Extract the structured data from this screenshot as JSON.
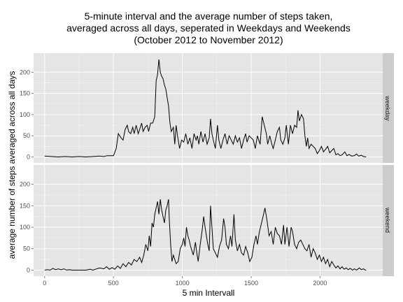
{
  "chart_data": {
    "type": "line",
    "title": [
      "5-minute interval and the average number of steps taken,",
      "averaged across all days, seperated in Weekdays and Weekends",
      "(October 2012 to November 2012)"
    ],
    "xlabel": "5 min Intervall",
    "ylabel": "average number of steps averaged across all days",
    "xlim": [
      -80,
      2455
    ],
    "ylim": [
      -14,
      245
    ],
    "x_ticks": [
      0,
      500,
      1000,
      1500,
      2000
    ],
    "y_ticks": [
      0,
      50,
      100,
      150,
      200
    ],
    "grid": true,
    "line_color": "#000000",
    "panel_background": "#e5e5e5",
    "strip_background": "#cccccc",
    "series": [
      {
        "panel": "weekday",
        "points": [
          [
            0,
            2
          ],
          [
            50,
            1
          ],
          [
            100,
            0
          ],
          [
            150,
            1
          ],
          [
            200,
            0
          ],
          [
            250,
            1
          ],
          [
            300,
            0
          ],
          [
            350,
            1
          ],
          [
            400,
            2
          ],
          [
            430,
            1
          ],
          [
            455,
            3
          ],
          [
            500,
            3
          ],
          [
            520,
            20
          ],
          [
            535,
            55
          ],
          [
            555,
            45
          ],
          [
            570,
            40
          ],
          [
            585,
            65
          ],
          [
            600,
            75
          ],
          [
            610,
            60
          ],
          [
            625,
            55
          ],
          [
            640,
            70
          ],
          [
            650,
            55
          ],
          [
            665,
            75
          ],
          [
            680,
            55
          ],
          [
            690,
            65
          ],
          [
            705,
            80
          ],
          [
            715,
            60
          ],
          [
            730,
            70
          ],
          [
            745,
            75
          ],
          [
            755,
            60
          ],
          [
            770,
            80
          ],
          [
            785,
            80
          ],
          [
            800,
            95
          ],
          [
            810,
            180
          ],
          [
            820,
            195
          ],
          [
            830,
            230
          ],
          [
            840,
            200
          ],
          [
            850,
            190
          ],
          [
            860,
            185
          ],
          [
            870,
            170
          ],
          [
            880,
            160
          ],
          [
            890,
            140
          ],
          [
            900,
            120
          ],
          [
            910,
            80
          ],
          [
            920,
            60
          ],
          [
            935,
            70
          ],
          [
            945,
            30
          ],
          [
            955,
            75
          ],
          [
            965,
            50
          ],
          [
            980,
            20
          ],
          [
            995,
            40
          ],
          [
            1010,
            35
          ],
          [
            1025,
            55
          ],
          [
            1040,
            30
          ],
          [
            1055,
            45
          ],
          [
            1070,
            20
          ],
          [
            1085,
            55
          ],
          [
            1100,
            40
          ],
          [
            1110,
            50
          ],
          [
            1120,
            30
          ],
          [
            1135,
            60
          ],
          [
            1150,
            35
          ],
          [
            1165,
            55
          ],
          [
            1180,
            30
          ],
          [
            1195,
            45
          ],
          [
            1205,
            90
          ],
          [
            1215,
            55
          ],
          [
            1225,
            40
          ],
          [
            1240,
            20
          ],
          [
            1255,
            75
          ],
          [
            1265,
            40
          ],
          [
            1280,
            20
          ],
          [
            1295,
            40
          ],
          [
            1310,
            55
          ],
          [
            1325,
            30
          ],
          [
            1340,
            50
          ],
          [
            1355,
            40
          ],
          [
            1370,
            30
          ],
          [
            1385,
            50
          ],
          [
            1400,
            35
          ],
          [
            1415,
            45
          ],
          [
            1430,
            20
          ],
          [
            1445,
            40
          ],
          [
            1460,
            55
          ],
          [
            1470,
            35
          ],
          [
            1485,
            50
          ],
          [
            1500,
            45
          ],
          [
            1515,
            40
          ],
          [
            1530,
            20
          ],
          [
            1545,
            50
          ],
          [
            1555,
            40
          ],
          [
            1565,
            30
          ],
          [
            1580,
            95
          ],
          [
            1595,
            75
          ],
          [
            1610,
            55
          ],
          [
            1620,
            30
          ],
          [
            1635,
            50
          ],
          [
            1650,
            30
          ],
          [
            1660,
            20
          ],
          [
            1675,
            40
          ],
          [
            1690,
            60
          ],
          [
            1705,
            70
          ],
          [
            1715,
            40
          ],
          [
            1730,
            30
          ],
          [
            1745,
            45
          ],
          [
            1755,
            75
          ],
          [
            1770,
            30
          ],
          [
            1785,
            75
          ],
          [
            1800,
            55
          ],
          [
            1815,
            75
          ],
          [
            1830,
            70
          ],
          [
            1840,
            110
          ],
          [
            1850,
            85
          ],
          [
            1865,
            100
          ],
          [
            1880,
            90
          ],
          [
            1890,
            50
          ],
          [
            1900,
            25
          ],
          [
            1910,
            45
          ],
          [
            1920,
            20
          ],
          [
            1935,
            30
          ],
          [
            1950,
            25
          ],
          [
            1965,
            20
          ],
          [
            1980,
            8
          ],
          [
            1995,
            15
          ],
          [
            2010,
            25
          ],
          [
            2025,
            12
          ],
          [
            2040,
            18
          ],
          [
            2055,
            25
          ],
          [
            2070,
            10
          ],
          [
            2085,
            15
          ],
          [
            2100,
            20
          ],
          [
            2115,
            5
          ],
          [
            2130,
            8
          ],
          [
            2145,
            3
          ],
          [
            2160,
            5
          ],
          [
            2180,
            12
          ],
          [
            2195,
            3
          ],
          [
            2210,
            6
          ],
          [
            2230,
            2
          ],
          [
            2250,
            3
          ],
          [
            2265,
            7
          ],
          [
            2280,
            2
          ],
          [
            2300,
            4
          ],
          [
            2315,
            1
          ],
          [
            2335,
            0
          ]
        ]
      },
      {
        "panel": "weekend",
        "points": [
          [
            0,
            0
          ],
          [
            20,
            1
          ],
          [
            40,
            0
          ],
          [
            60,
            4
          ],
          [
            80,
            1
          ],
          [
            100,
            3
          ],
          [
            120,
            1
          ],
          [
            140,
            3
          ],
          [
            160,
            0
          ],
          [
            180,
            1
          ],
          [
            200,
            0
          ],
          [
            250,
            0
          ],
          [
            300,
            0
          ],
          [
            330,
            2
          ],
          [
            350,
            0
          ],
          [
            400,
            5
          ],
          [
            430,
            3
          ],
          [
            450,
            8
          ],
          [
            470,
            2
          ],
          [
            490,
            6
          ],
          [
            510,
            2
          ],
          [
            530,
            10
          ],
          [
            550,
            4
          ],
          [
            570,
            15
          ],
          [
            590,
            8
          ],
          [
            610,
            18
          ],
          [
            630,
            12
          ],
          [
            650,
            25
          ],
          [
            670,
            20
          ],
          [
            690,
            30
          ],
          [
            705,
            18
          ],
          [
            720,
            35
          ],
          [
            735,
            60
          ],
          [
            750,
            45
          ],
          [
            760,
            80
          ],
          [
            770,
            55
          ],
          [
            780,
            110
          ],
          [
            790,
            100
          ],
          [
            800,
            130
          ],
          [
            810,
            145
          ],
          [
            820,
            160
          ],
          [
            830,
            130
          ],
          [
            840,
            165
          ],
          [
            850,
            140
          ],
          [
            860,
            125
          ],
          [
            870,
            110
          ],
          [
            880,
            140
          ],
          [
            890,
            150
          ],
          [
            900,
            165
          ],
          [
            905,
            120
          ],
          [
            915,
            60
          ],
          [
            925,
            20
          ],
          [
            935,
            35
          ],
          [
            945,
            25
          ],
          [
            955,
            15
          ],
          [
            970,
            20
          ],
          [
            985,
            50
          ],
          [
            1000,
            60
          ],
          [
            1010,
            75
          ],
          [
            1020,
            55
          ],
          [
            1030,
            100
          ],
          [
            1040,
            80
          ],
          [
            1050,
            70
          ],
          [
            1060,
            55
          ],
          [
            1070,
            45
          ],
          [
            1080,
            35
          ],
          [
            1095,
            65
          ],
          [
            1105,
            40
          ],
          [
            1115,
            20
          ],
          [
            1130,
            60
          ],
          [
            1145,
            95
          ],
          [
            1155,
            125
          ],
          [
            1165,
            100
          ],
          [
            1175,
            80
          ],
          [
            1185,
            60
          ],
          [
            1195,
            45
          ],
          [
            1205,
            150
          ],
          [
            1215,
            100
          ],
          [
            1225,
            50
          ],
          [
            1240,
            40
          ],
          [
            1255,
            30
          ],
          [
            1270,
            55
          ],
          [
            1285,
            70
          ],
          [
            1300,
            120
          ],
          [
            1310,
            100
          ],
          [
            1320,
            60
          ],
          [
            1335,
            50
          ],
          [
            1350,
            80
          ],
          [
            1360,
            55
          ],
          [
            1375,
            130
          ],
          [
            1385,
            70
          ],
          [
            1400,
            45
          ],
          [
            1415,
            60
          ],
          [
            1430,
            40
          ],
          [
            1445,
            35
          ],
          [
            1460,
            55
          ],
          [
            1475,
            40
          ],
          [
            1490,
            20
          ],
          [
            1505,
            30
          ],
          [
            1520,
            60
          ],
          [
            1535,
            80
          ],
          [
            1545,
            60
          ],
          [
            1560,
            90
          ],
          [
            1575,
            110
          ],
          [
            1590,
            130
          ],
          [
            1600,
            145
          ],
          [
            1615,
            115
          ],
          [
            1630,
            80
          ],
          [
            1645,
            90
          ],
          [
            1660,
            60
          ],
          [
            1675,
            100
          ],
          [
            1690,
            85
          ],
          [
            1705,
            80
          ],
          [
            1720,
            60
          ],
          [
            1735,
            105
          ],
          [
            1745,
            60
          ],
          [
            1760,
            100
          ],
          [
            1775,
            55
          ],
          [
            1790,
            100
          ],
          [
            1800,
            90
          ],
          [
            1815,
            60
          ],
          [
            1830,
            50
          ],
          [
            1845,
            65
          ],
          [
            1860,
            70
          ],
          [
            1875,
            60
          ],
          [
            1890,
            50
          ],
          [
            1905,
            45
          ],
          [
            1920,
            60
          ],
          [
            1935,
            30
          ],
          [
            1950,
            50
          ],
          [
            1965,
            40
          ],
          [
            1980,
            25
          ],
          [
            1995,
            35
          ],
          [
            2010,
            20
          ],
          [
            2025,
            30
          ],
          [
            2040,
            15
          ],
          [
            2055,
            25
          ],
          [
            2070,
            8
          ],
          [
            2085,
            20
          ],
          [
            2100,
            12
          ],
          [
            2115,
            5
          ],
          [
            2130,
            10
          ],
          [
            2145,
            3
          ],
          [
            2160,
            8
          ],
          [
            2175,
            2
          ],
          [
            2190,
            5
          ],
          [
            2205,
            1
          ],
          [
            2220,
            4
          ],
          [
            2235,
            0
          ],
          [
            2250,
            3
          ],
          [
            2265,
            0
          ],
          [
            2285,
            5
          ],
          [
            2300,
            1
          ],
          [
            2315,
            3
          ],
          [
            2330,
            0
          ],
          [
            2335,
            0
          ]
        ]
      }
    ]
  }
}
